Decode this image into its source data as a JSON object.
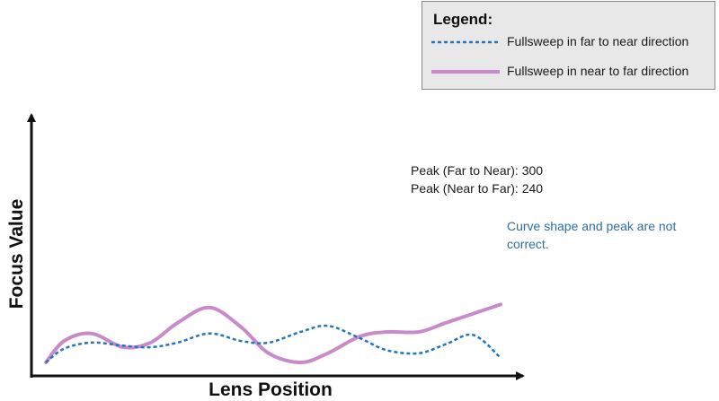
{
  "chart_data": {
    "type": "line",
    "title": "",
    "xlabel": "Lens Position",
    "ylabel": "Focus Value",
    "xlim": [
      0,
      100
    ],
    "ylim": [
      0,
      100
    ],
    "grid": false,
    "legend": {
      "title": "Legend:",
      "placement": "top-right"
    },
    "series": [
      {
        "name": "Fullsweep in far to near direction",
        "style": "dashed",
        "color": "#2474c0",
        "x": [
          0,
          4,
          10,
          17,
          23,
          29,
          36,
          43,
          49,
          56,
          62,
          69,
          75,
          82,
          88,
          94,
          100
        ],
        "y": [
          0,
          9,
          13,
          11,
          10,
          13,
          19,
          14,
          13,
          20,
          24,
          16,
          8,
          6,
          12,
          18,
          3
        ]
      },
      {
        "name": "Fullsweep in near to far direction",
        "style": "solid",
        "color": "#c98ac9",
        "x": [
          0,
          4,
          10,
          17,
          23,
          29,
          36,
          43,
          49,
          56,
          62,
          69,
          75,
          82,
          88,
          94,
          100
        ],
        "y": [
          0,
          14,
          19,
          10,
          13,
          26,
          36,
          23,
          6,
          0,
          6,
          17,
          20,
          20,
          26,
          32,
          38
        ]
      }
    ],
    "annotations": {
      "peak_far_to_near": "Peak (Far to Near): 300",
      "peak_near_to_far": "Peak (Near to Far): 240",
      "note": "Curve shape and peak are not correct."
    }
  }
}
